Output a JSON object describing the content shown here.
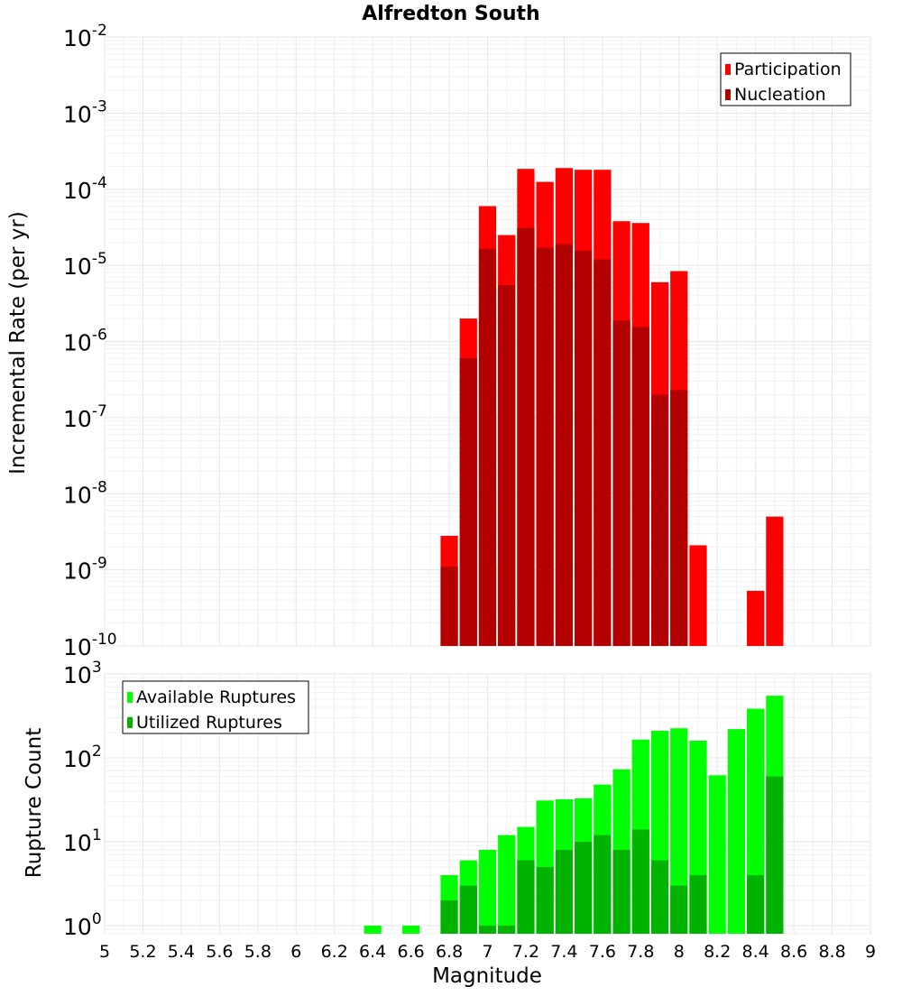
{
  "chart_data": [
    {
      "type": "bar",
      "title": "Alfredton South",
      "xlabel": "",
      "ylabel": "Incremental Rate (per yr)",
      "yscale": "log",
      "ylim": [
        1e-10,
        0.01
      ],
      "xlim": [
        5,
        9
      ],
      "grid": true,
      "legend_position": "top-right",
      "ytick_exponents": [
        "-10",
        "-9",
        "-8",
        "-7",
        "-6",
        "-5",
        "-4",
        "-3",
        "-2"
      ],
      "x": [
        6.8,
        6.9,
        7.0,
        7.1,
        7.2,
        7.3,
        7.4,
        7.5,
        7.6,
        7.7,
        7.8,
        7.9,
        8.0,
        8.1,
        8.2,
        8.3,
        8.4,
        8.5
      ],
      "series": [
        {
          "name": "Participation",
          "color": "#ff0000",
          "values": [
            2.8e-09,
            2e-06,
            6e-05,
            2.5e-05,
            0.000185,
            0.000125,
            0.00019,
            0.00018,
            0.00018,
            3.8e-05,
            3.6e-05,
            6e-06,
            8.4e-06,
            2.1e-09,
            null,
            null,
            5.3e-10,
            5e-09
          ]
        },
        {
          "name": "Nucleation",
          "color": "#b30000",
          "values": [
            1.1e-09,
            6e-07,
            1.65e-05,
            5.5e-06,
            3.1e-05,
            1.7e-05,
            1.9e-05,
            1.55e-05,
            1.2e-05,
            1.9e-06,
            1.55e-06,
            2e-07,
            2.3e-07,
            null,
            null,
            null,
            null,
            null
          ]
        }
      ]
    },
    {
      "type": "bar",
      "title": "",
      "xlabel": "Magnitude",
      "ylabel": "Rupture Count",
      "yscale": "log",
      "ylim": [
        0.8,
        1000
      ],
      "xlim": [
        5,
        9
      ],
      "grid": true,
      "legend_position": "top-left",
      "xticks": [
        "5",
        "5.2",
        "5.4",
        "5.6",
        "5.8",
        "6",
        "6.2",
        "6.4",
        "6.6",
        "6.8",
        "7",
        "7.2",
        "7.4",
        "7.6",
        "7.8",
        "8",
        "8.2",
        "8.4",
        "8.6",
        "8.8",
        "9"
      ],
      "ytick_exponents": [
        "0",
        "1",
        "2",
        "3"
      ],
      "x": [
        6.4,
        6.6,
        6.8,
        6.9,
        7.0,
        7.1,
        7.2,
        7.3,
        7.4,
        7.5,
        7.6,
        7.7,
        7.8,
        7.9,
        8.0,
        8.1,
        8.2,
        8.3,
        8.4,
        8.5
      ],
      "series": [
        {
          "name": "Available Ruptures",
          "color": "#00ff00",
          "values": [
            1,
            1,
            4,
            6,
            8,
            12,
            15,
            31,
            32,
            33,
            48,
            73,
            165,
            210,
            225,
            160,
            62,
            220,
            385,
            550
          ]
        },
        {
          "name": "Utilized Ruptures",
          "color": "#00b300",
          "values": [
            null,
            null,
            2,
            3,
            1,
            1,
            6,
            5,
            8,
            10,
            12,
            8,
            14,
            6,
            3,
            4,
            null,
            null,
            4,
            60
          ]
        }
      ]
    }
  ]
}
